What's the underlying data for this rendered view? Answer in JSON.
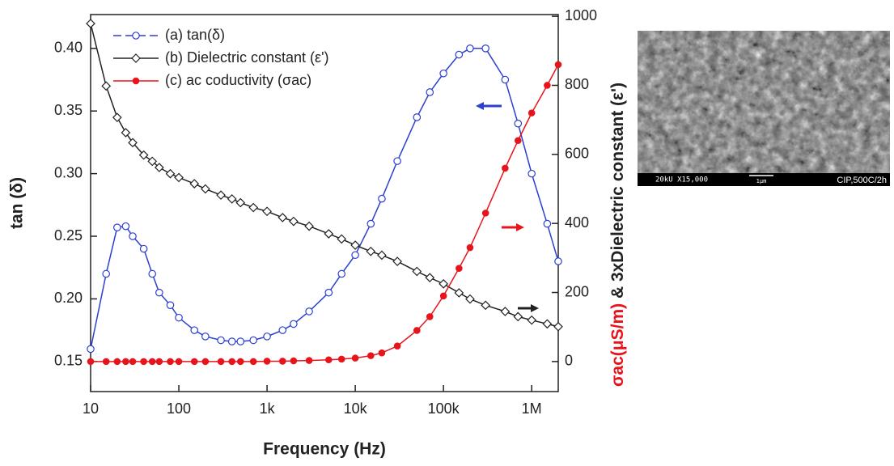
{
  "chart_data": {
    "type": "line",
    "x_label": "Frequency (Hz)",
    "y_label": "tan (δ)",
    "y2_label_red": "σac(μS/m)",
    "y2_label_black": " & 3xDielectric constant (ε')",
    "x_scale": "log",
    "xlim": [
      10,
      2000000
    ],
    "xticks": [
      10,
      100,
      {
        "value": 1000,
        "label": "1k"
      },
      {
        "value": 10000,
        "label": "10k"
      },
      {
        "value": 100000,
        "label": "100k"
      },
      {
        "value": 1000000,
        "label": "1M"
      }
    ],
    "ylim": [
      0.126,
      0.427
    ],
    "yticks": [
      0.15,
      0.2,
      0.25,
      0.3,
      0.35,
      0.4
    ],
    "ytick_labels": [
      "0.15",
      "0.20",
      "0.25",
      "0.30",
      "0.35",
      "0.40"
    ],
    "y2lim": [
      -87,
      1005
    ],
    "y2ticks": [
      0,
      200,
      400,
      600,
      800,
      1000
    ],
    "legend": "upper left",
    "x": [
      10,
      15,
      20,
      25,
      30,
      40,
      50,
      60,
      80,
      100,
      150,
      200,
      300,
      400,
      500,
      700,
      1000,
      1500,
      2000,
      3000,
      5000,
      7000,
      10000,
      15000,
      20000,
      30000,
      50000,
      70000,
      100000,
      150000,
      200000,
      300000,
      500000,
      700000,
      1000000,
      1500000,
      2000000
    ],
    "series": [
      {
        "name": "(a) tan(δ)",
        "color": "#2b3fd1",
        "marker": "open-circle",
        "values": [
          0.16,
          0.22,
          0.257,
          0.258,
          0.25,
          0.24,
          0.22,
          0.205,
          0.195,
          0.185,
          0.175,
          0.17,
          0.167,
          0.166,
          0.166,
          0.167,
          0.17,
          0.175,
          0.18,
          0.19,
          0.205,
          0.22,
          0.235,
          0.26,
          0.28,
          0.31,
          0.345,
          0.365,
          0.38,
          0.395,
          0.4,
          0.4,
          0.375,
          0.34,
          0.3,
          0.26,
          0.23
        ]
      },
      {
        "name": "(b) Dielectric constant (ε')",
        "color": "#222222",
        "marker": "open-diamond",
        "axis": "y2",
        "values": [
          979,
          798,
          707,
          663,
          634,
          598,
          580,
          562,
          544,
          533,
          515,
          500,
          482,
          471,
          460,
          446,
          435,
          417,
          406,
          392,
          370,
          355,
          337,
          319,
          308,
          290,
          261,
          243,
          225,
          199,
          181,
          163,
          145,
          130,
          120,
          109,
          101
        ]
      },
      {
        "name": "(c) ac coductivity (σac)",
        "color": "#e8141c",
        "marker": "filled-circle",
        "axis": "y2",
        "values": [
          0,
          0,
          0,
          0,
          0,
          0,
          0,
          0,
          0,
          0,
          0,
          0,
          0,
          0,
          0,
          0,
          1,
          1,
          2,
          3,
          5,
          7,
          10,
          17,
          25,
          45,
          90,
          130,
          190,
          270,
          330,
          430,
          560,
          640,
          720,
          800,
          860
        ]
      }
    ],
    "inset": {
      "scale_info": "20kU  X15,000",
      "scale_bar": "1μm",
      "caption": "CIP,500C/2h"
    }
  }
}
